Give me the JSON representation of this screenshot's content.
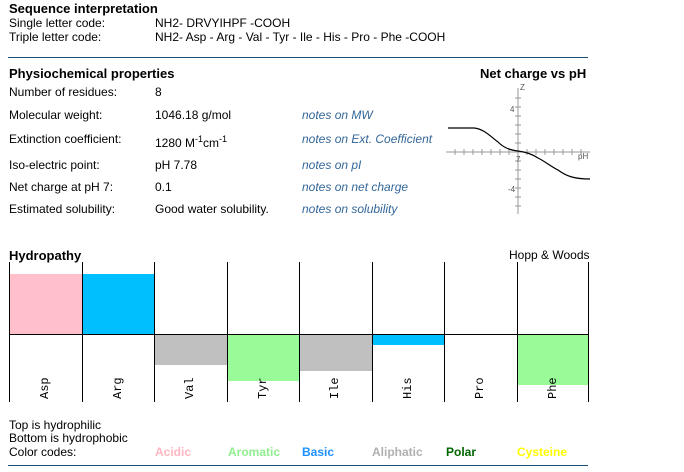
{
  "sequence": {
    "heading": "Sequence interpretation",
    "single_label": "Single letter code:",
    "single_value": "NH2- DRVYIHPF -COOH",
    "triple_label": "Triple letter code:",
    "triple_value": "NH2- Asp - Arg - Val - Tyr - Ile - His - Pro - Phe -COOH"
  },
  "properties": {
    "heading": "Physiochemical properties",
    "rows": [
      {
        "label": "Number of residues:",
        "value": "8",
        "note": ""
      },
      {
        "label": "Molecular weight:",
        "value": "1046.18 g/mol",
        "note": "notes on MW"
      },
      {
        "label": "Extinction coefficient:",
        "value": "1280 M",
        "sup1": "-1",
        "mid": "cm",
        "sup2": "-1",
        "note": "notes on Ext. Coefficient"
      },
      {
        "label": "Iso-electric point:",
        "value": "pH 7.78",
        "note": "notes on pI"
      },
      {
        "label": "Net charge at pH 7:",
        "value": "0.1",
        "note": "notes on net charge"
      },
      {
        "label": "Estimated solubility:",
        "value": "Good water solubility.",
        "note": "notes on solubility"
      }
    ]
  },
  "net_charge_chart": {
    "title": "Net charge vs pH",
    "axis_z": "Z",
    "axis_ph": "pH",
    "tick_pos": "4",
    "tick_mid": "7",
    "tick_neg": "-4"
  },
  "hydropathy": {
    "heading": "Hydropathy",
    "scale": "Hopp & Woods",
    "residues": [
      {
        "name": "Asp",
        "value": 3.0,
        "color": "#ffc0cb"
      },
      {
        "name": "Arg",
        "value": 3.0,
        "color": "#00bfff"
      },
      {
        "name": "Val",
        "value": -1.5,
        "color": "#c0c0c0"
      },
      {
        "name": "Tyr",
        "value": -2.3,
        "color": "#98fb98"
      },
      {
        "name": "Ile",
        "value": -1.8,
        "color": "#c0c0c0"
      },
      {
        "name": "His",
        "value": -0.5,
        "color": "#00bfff"
      },
      {
        "name": "Pro",
        "value": 0.0,
        "color": "#ffffff"
      },
      {
        "name": "Phe",
        "value": -2.5,
        "color": "#98fb98"
      }
    ],
    "legend_top": "Top is hydrophilic",
    "legend_bottom": "Bottom is hydrophobic",
    "color_codes_label": "Color codes:",
    "color_codes": [
      {
        "name": "Acidic",
        "color": "#ffb6c1"
      },
      {
        "name": "Aromatic",
        "color": "#90ee90"
      },
      {
        "name": "Basic",
        "color": "#1e90ff"
      },
      {
        "name": "Aliphatic",
        "color": "#b0b0b0"
      },
      {
        "name": "Polar",
        "color": "#006400"
      },
      {
        "name": "Cysteine",
        "color": "#ffff00"
      }
    ]
  }
}
